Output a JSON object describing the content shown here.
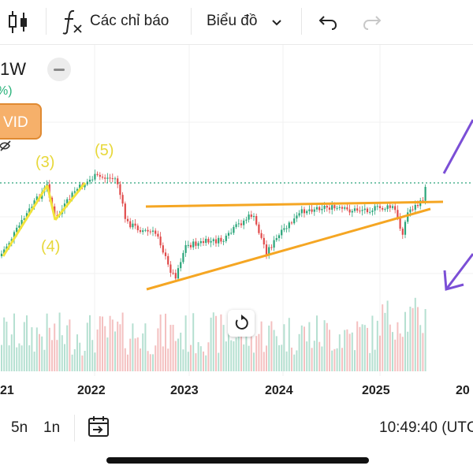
{
  "toolbar": {
    "indicators_label": "Các chỉ báo",
    "chart_type_label": "Biểu đồ",
    "icons": [
      "candlestick-icon",
      "function-icon",
      "chevron-down-icon",
      "undo-icon",
      "redo-icon"
    ]
  },
  "chart": {
    "interval": "1W",
    "change_pct_fragment": "%)",
    "badge_text": "VID",
    "wave_labels": [
      "(3)",
      "(4)",
      "(5)"
    ],
    "x_axis_labels": [
      "21",
      "2022",
      "2023",
      "2024",
      "2025",
      "20"
    ],
    "colors": {
      "up": "#2aa57a",
      "down": "#e04a4a",
      "wave": "#f2e33a",
      "trendline": "#f5a623",
      "arrow": "#7b4fd6",
      "price_line": "#2aa57a",
      "badge": "#f6b06a"
    }
  },
  "footer": {
    "range_5n": "5n",
    "range_1n": "1n",
    "time": "10:49:40 (UTC"
  }
}
